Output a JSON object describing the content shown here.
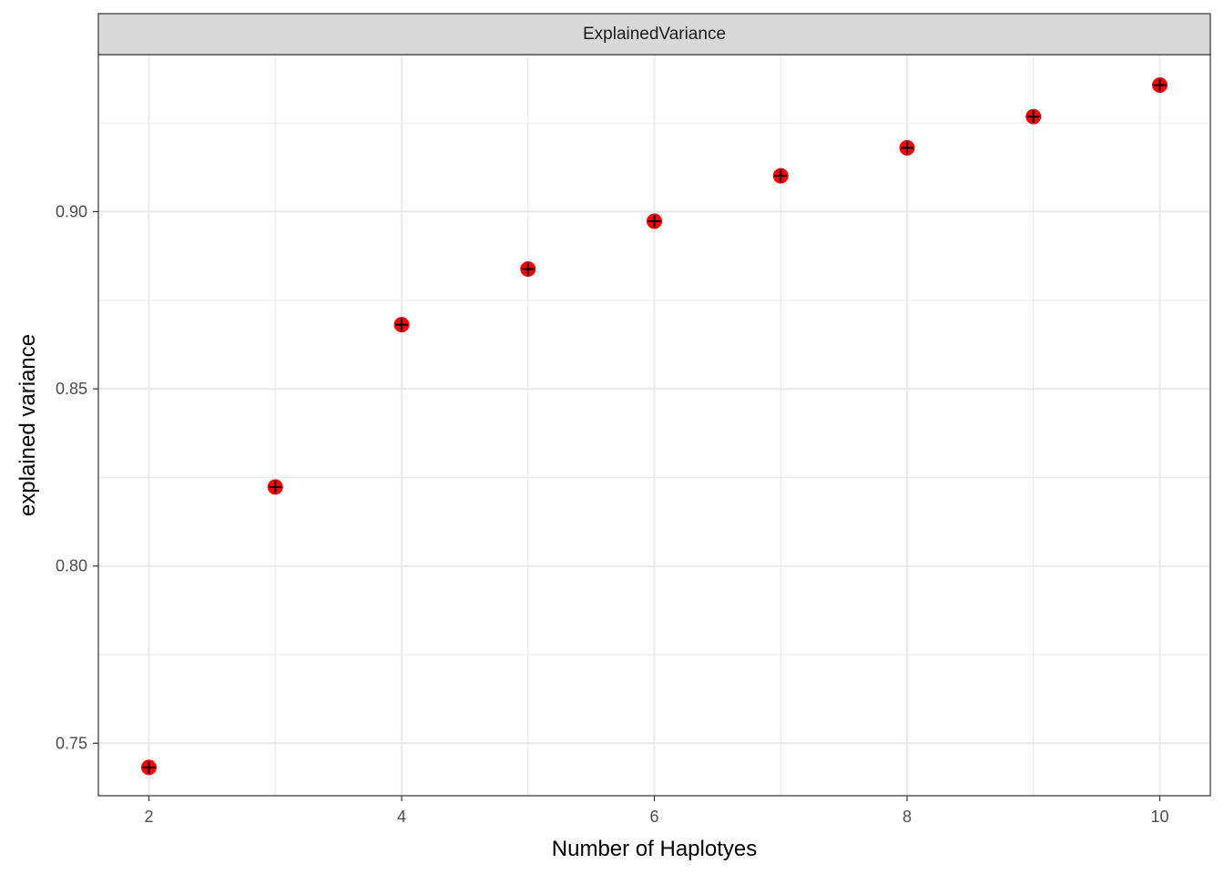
{
  "chart_data": {
    "type": "scatter",
    "panel_title": "ExplainedVariance",
    "xlabel": "Number of Haplotyes",
    "ylabel": "explained variance",
    "x": [
      2,
      3,
      4,
      5,
      6,
      7,
      8,
      9,
      10
    ],
    "y": [
      0.7432,
      0.8223,
      0.8681,
      0.8838,
      0.8973,
      0.9101,
      0.918,
      0.9268,
      0.9357
    ],
    "xlim": [
      1.6,
      10.4
    ],
    "ylim": [
      0.7352,
      0.9443
    ],
    "x_ticks": [
      2,
      4,
      6,
      8,
      10
    ],
    "x_tick_labels": [
      "2",
      "4",
      "6",
      "8",
      "10"
    ],
    "x_minor_ticks": [
      3,
      5,
      7,
      9
    ],
    "y_ticks": [
      0.75,
      0.8,
      0.85,
      0.9
    ],
    "y_tick_labels": [
      "0.75",
      "0.80",
      "0.85",
      "0.90"
    ],
    "y_minor_ticks": [
      0.775,
      0.825,
      0.875,
      0.925
    ],
    "grid": true,
    "legend": "none",
    "point_fill": "#ff0000",
    "point_marker": "crosshair-plus",
    "strip_fill": "#d9d9d9",
    "grid_color": "#ebebeb"
  }
}
